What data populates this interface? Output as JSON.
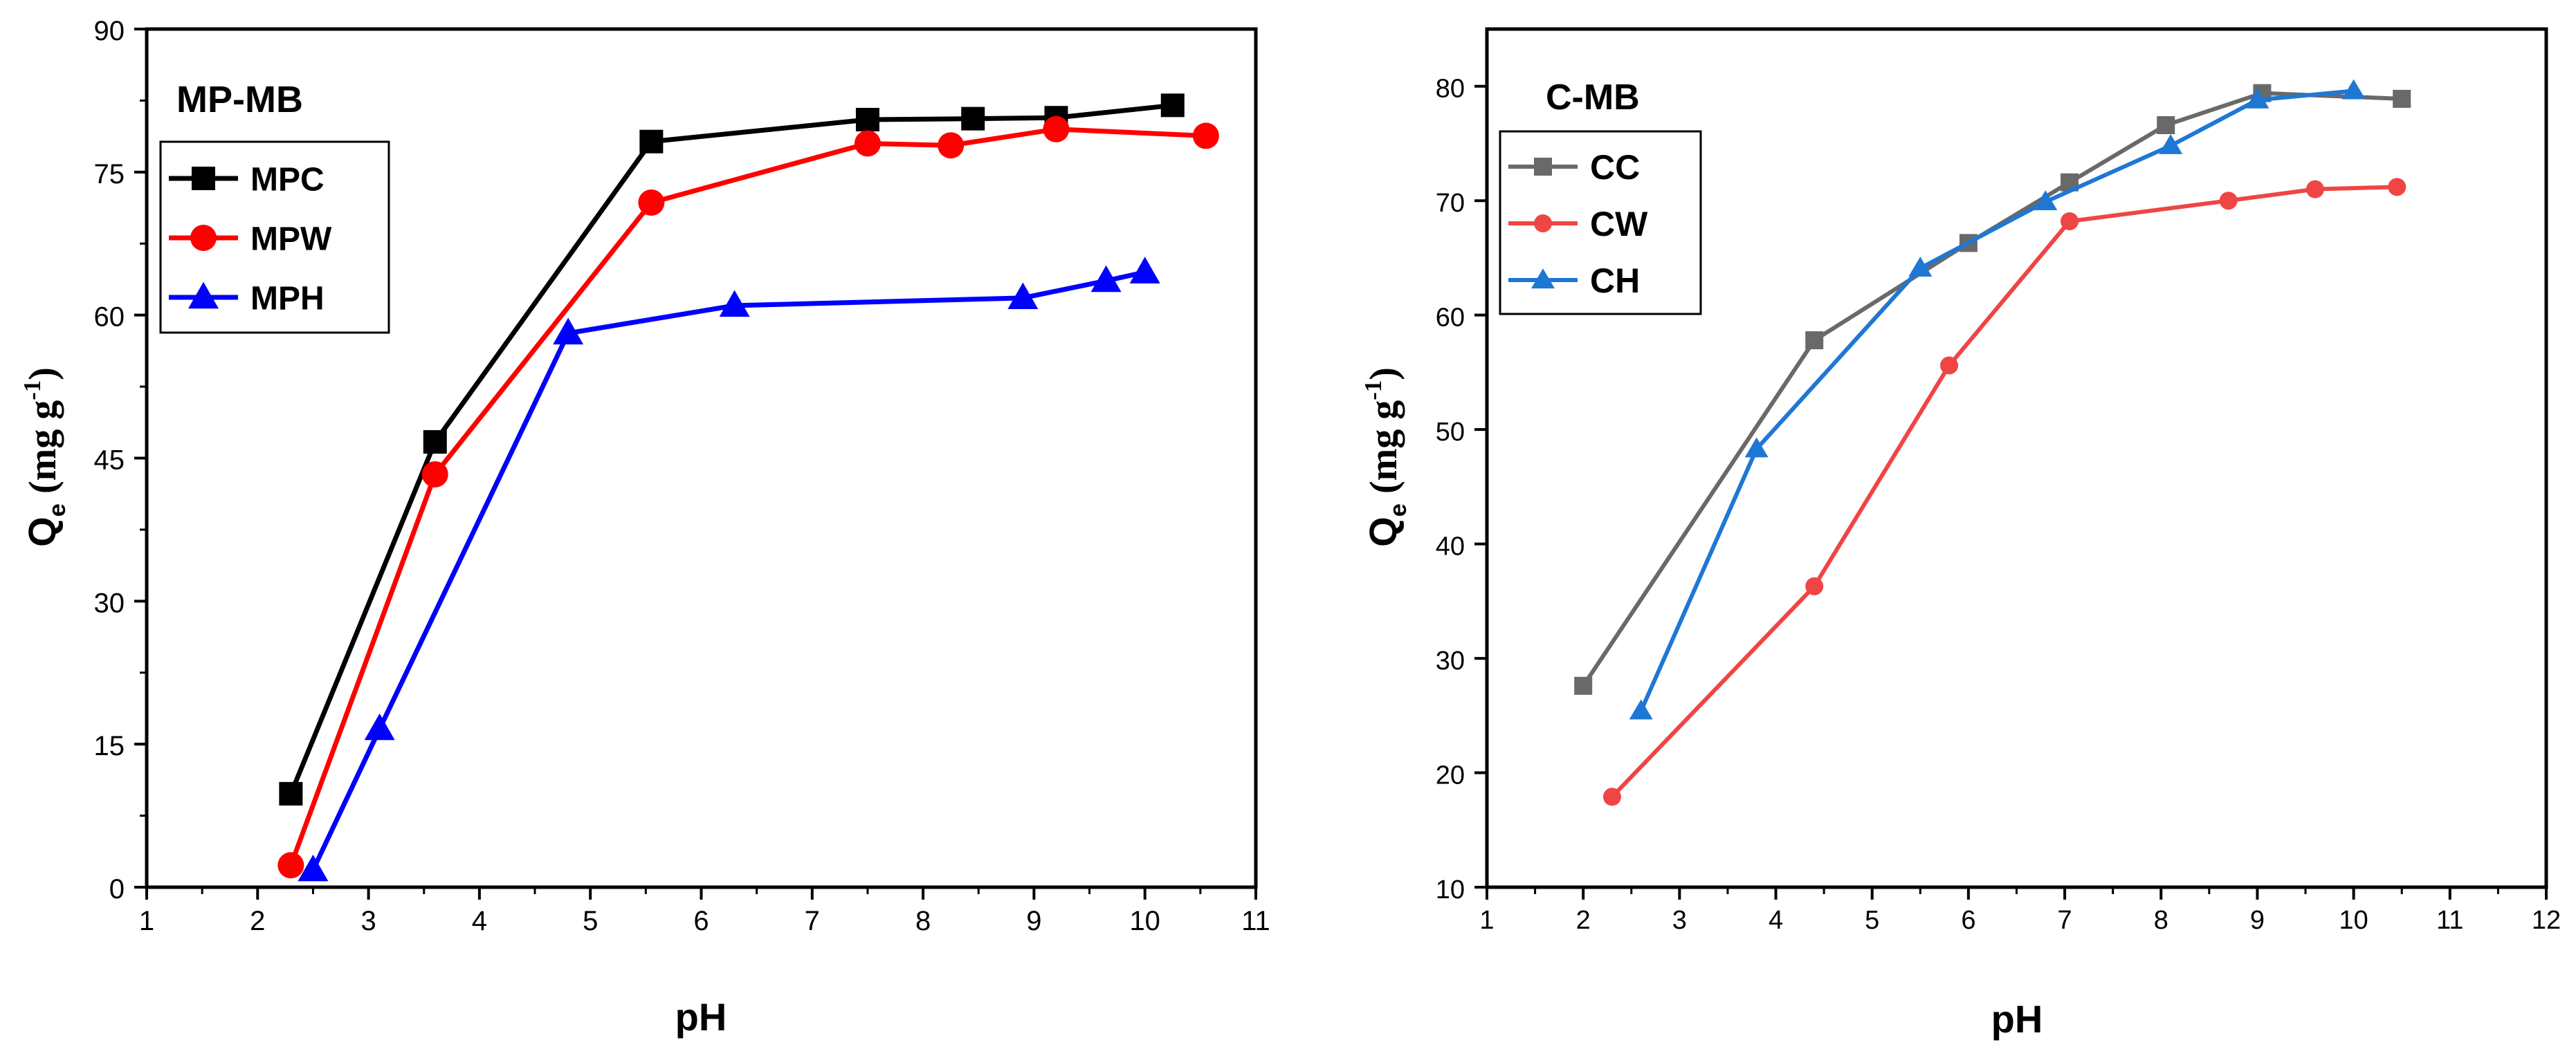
{
  "chart_data": [
    {
      "type": "line",
      "title": "MP-MB",
      "xlabel": "pH",
      "ylabel_main": "Q",
      "ylabel_sub": "e",
      "ylabel_unit_pre": "(mg g",
      "ylabel_unit_sup": "-1",
      "ylabel_unit_post": ")",
      "xlim": [
        1,
        11
      ],
      "ylim": [
        0,
        90
      ],
      "xticks": [
        1,
        2,
        3,
        4,
        5,
        6,
        7,
        8,
        9,
        10,
        11
      ],
      "yticks": [
        0,
        15,
        30,
        45,
        60,
        75,
        90
      ],
      "legend_position": "top-left",
      "series": [
        {
          "name": "MPC",
          "color": "#000000",
          "marker": "square",
          "x": [
            2.3,
            3.6,
            5.55,
            7.5,
            8.45,
            9.2,
            10.25
          ],
          "y": [
            9.8,
            46.7,
            78.2,
            80.5,
            80.6,
            80.7,
            82.0
          ]
        },
        {
          "name": "MPW",
          "color": "#ff0000",
          "marker": "circle",
          "x": [
            2.3,
            3.6,
            5.55,
            7.5,
            8.25,
            9.2,
            10.55
          ],
          "y": [
            2.3,
            43.3,
            71.8,
            78.0,
            77.8,
            79.5,
            78.8
          ]
        },
        {
          "name": "MPH",
          "color": "#0000ff",
          "marker": "triangle",
          "x": [
            2.5,
            3.1,
            4.8,
            6.3,
            8.9,
            9.65,
            10.0
          ],
          "y": [
            1.8,
            16.6,
            58.1,
            61.0,
            61.8,
            63.6,
            64.5
          ]
        }
      ]
    },
    {
      "type": "line",
      "title": "C-MB",
      "xlabel": "pH",
      "ylabel_main": "Q",
      "ylabel_sub": "e",
      "ylabel_unit_pre": "(mg g",
      "ylabel_unit_sup": "-1",
      "ylabel_unit_post": ")",
      "xlim": [
        1,
        12
      ],
      "ylim": [
        10,
        85
      ],
      "xticks": [
        1,
        2,
        3,
        4,
        5,
        6,
        7,
        8,
        9,
        10,
        11,
        12
      ],
      "yticks": [
        10,
        20,
        30,
        40,
        50,
        60,
        70,
        80
      ],
      "legend_position": "top-left",
      "series": [
        {
          "name": "CC",
          "color": "#696969",
          "marker": "square",
          "x": [
            2.0,
            4.4,
            6.0,
            7.05,
            8.05,
            9.05,
            10.5
          ],
          "y": [
            27.6,
            57.8,
            66.3,
            71.6,
            76.6,
            79.4,
            78.9
          ]
        },
        {
          "name": "CW",
          "color": "#ef4545",
          "marker": "circle",
          "x": [
            2.3,
            4.4,
            5.8,
            7.05,
            8.7,
            9.6,
            10.45
          ],
          "y": [
            17.9,
            36.3,
            55.6,
            68.2,
            70.0,
            71.0,
            71.2
          ]
        },
        {
          "name": "CH",
          "color": "#1f77d4",
          "marker": "triangle",
          "x": [
            2.6,
            3.8,
            5.5,
            6.8,
            8.1,
            9.0,
            10.0
          ],
          "y": [
            25.4,
            48.3,
            64.1,
            69.9,
            74.8,
            78.8,
            79.6
          ]
        }
      ]
    }
  ]
}
